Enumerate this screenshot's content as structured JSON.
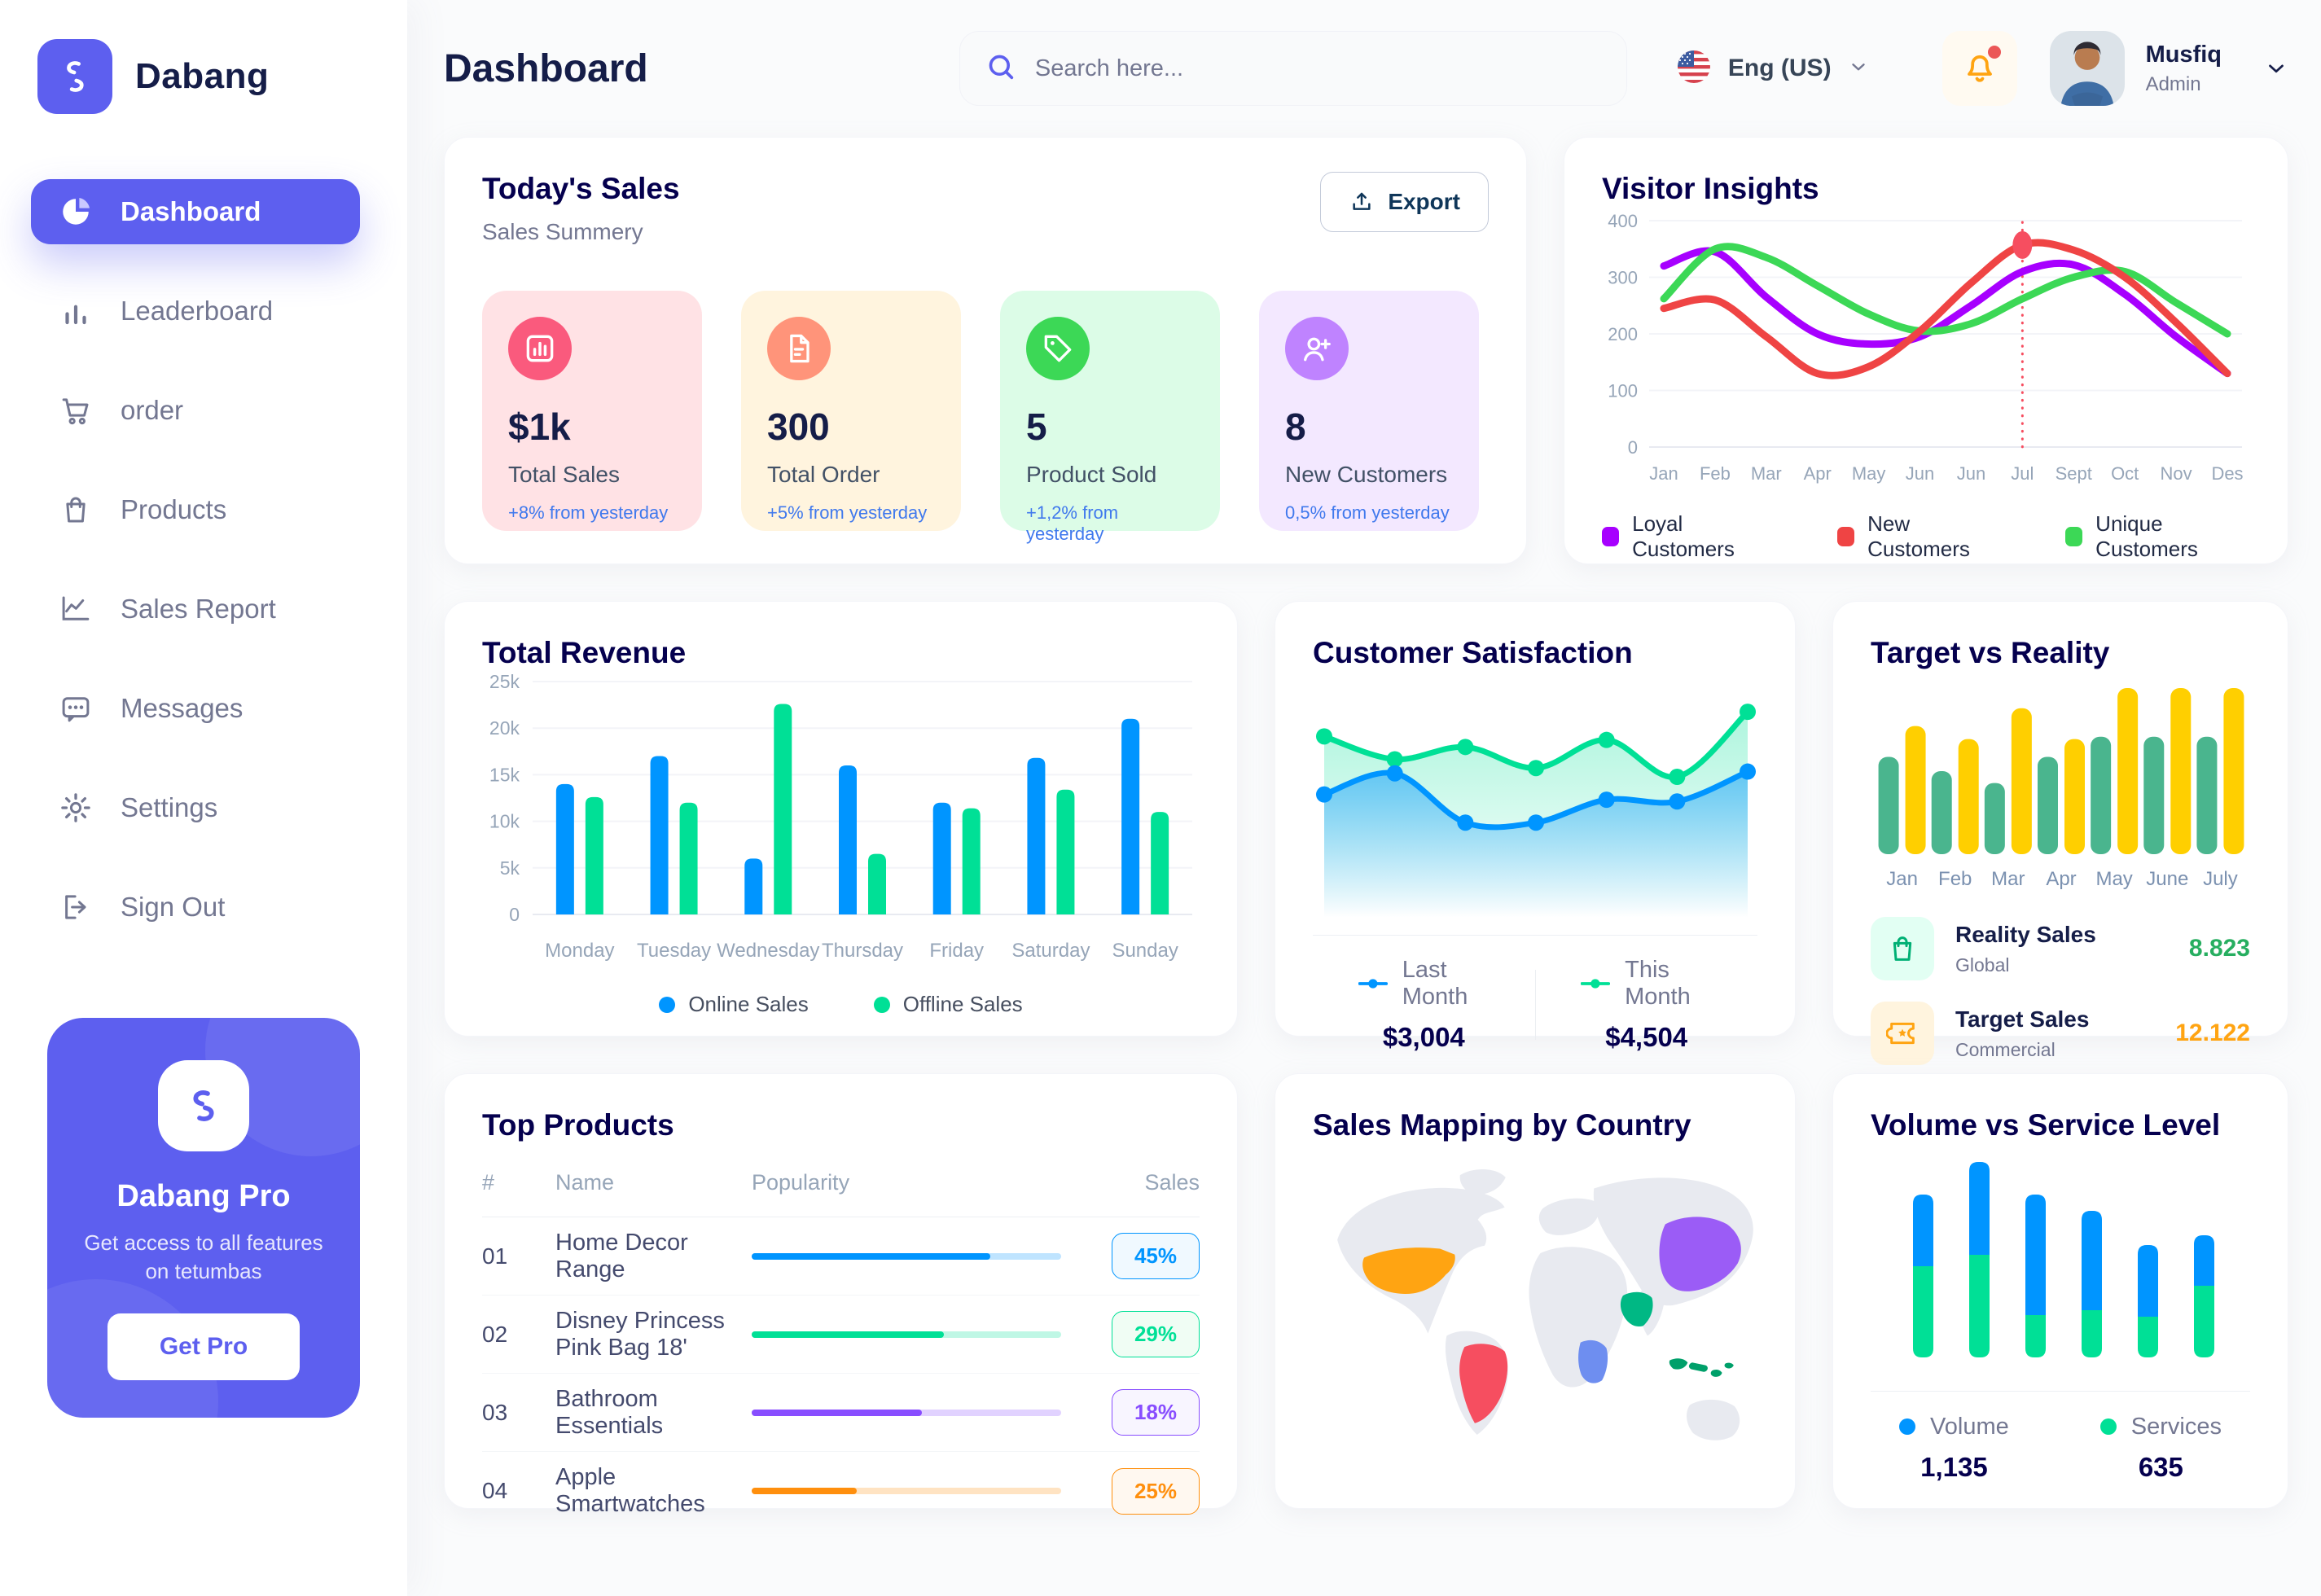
{
  "brand": {
    "name": "Dabang"
  },
  "sidebar": {
    "items": [
      {
        "label": "Dashboard",
        "icon": "dashboard-icon",
        "active": true
      },
      {
        "label": "Leaderboard",
        "icon": "leaderboard-icon",
        "active": false
      },
      {
        "label": "order",
        "icon": "cart-icon",
        "active": false
      },
      {
        "label": "Products",
        "icon": "bag-icon",
        "active": false
      },
      {
        "label": "Sales Report",
        "icon": "line-chart-icon",
        "active": false
      },
      {
        "label": "Messages",
        "icon": "messages-icon",
        "active": false
      },
      {
        "label": "Settings",
        "icon": "settings-icon",
        "active": false
      },
      {
        "label": "Sign Out",
        "icon": "sign-out-icon",
        "active": false
      }
    ],
    "pro": {
      "title": "Dabang Pro",
      "desc": "Get access to all features on tetumbas",
      "cta": "Get Pro"
    }
  },
  "header": {
    "title": "Dashboard",
    "search_placeholder": "Search here...",
    "language": "Eng (US)",
    "user": {
      "name": "Musfiq",
      "role": "Admin"
    }
  },
  "today_sales": {
    "title": "Today's Sales",
    "subtitle": "Sales Summery",
    "export_label": "Export",
    "cards": [
      {
        "value": "$1k",
        "label": "Total Sales",
        "delta": "+8% from yesterday",
        "bg": "#FFE2E5",
        "icon_bg": "#FA5A7D",
        "icon": "bar-chart-icon"
      },
      {
        "value": "300",
        "label": "Total Order",
        "delta": "+5% from yesterday",
        "bg": "#FFF4DE",
        "icon_bg": "#FF947A",
        "icon": "file-icon"
      },
      {
        "value": "5",
        "label": "Product Sold",
        "delta": "+1,2% from yesterday",
        "bg": "#DCFCE7",
        "icon_bg": "#3CD856",
        "icon": "tag-icon"
      },
      {
        "value": "8",
        "label": "New Customers",
        "delta": "0,5% from yesterday",
        "bg": "#F3E8FF",
        "icon_bg": "#BF83FF",
        "icon": "user-plus-icon"
      }
    ]
  },
  "charts": {
    "visitor_insights": {
      "type": "line",
      "title": "Visitor Insights",
      "y_ticks": [
        0,
        100,
        200,
        300,
        400
      ],
      "y_max": 400,
      "x_labels": [
        "Jan",
        "Feb",
        "Mar",
        "Apr",
        "May",
        "Jun",
        "Jun",
        "Jul",
        "Sept",
        "Oct",
        "Nov",
        "Des"
      ],
      "series": [
        {
          "name": "Loyal Customers",
          "color": "#A700FF",
          "values": [
            320,
            345,
            265,
            200,
            182,
            195,
            250,
            310,
            322,
            270,
            195,
            130
          ]
        },
        {
          "name": "New Customers",
          "color": "#EF4444",
          "values": [
            245,
            260,
            195,
            130,
            142,
            205,
            290,
            357,
            348,
            300,
            220,
            130
          ]
        },
        {
          "name": "Unique Customers",
          "color": "#3CD856",
          "values": [
            262,
            350,
            335,
            285,
            235,
            205,
            218,
            262,
            300,
            310,
            255,
            200
          ]
        }
      ],
      "marker": {
        "series": "New Customers",
        "index": 7,
        "value": 357
      }
    },
    "total_revenue": {
      "type": "bar",
      "title": "Total Revenue",
      "y_tick_labels": [
        "0",
        "5k",
        "10k",
        "15k",
        "20k",
        "25k"
      ],
      "y_max": 25,
      "categories": [
        "Monday",
        "Tuesday",
        "Wednesday",
        "Thursday",
        "Friday",
        "Saturday",
        "Sunday"
      ],
      "series": [
        {
          "name": "Online Sales",
          "color": "#0095FF",
          "values": [
            14,
            17,
            6,
            16,
            12,
            16.8,
            21
          ]
        },
        {
          "name": "Offline Sales",
          "color": "#00E096",
          "values": [
            12.6,
            12,
            22.6,
            6.5,
            11.4,
            13.4,
            11
          ]
        }
      ]
    },
    "customer_satisfaction": {
      "type": "area",
      "title": "Customer Satisfaction",
      "y_max": 100,
      "series": [
        {
          "name": "Last Month",
          "color": "#0095FF",
          "total": "$3,004",
          "values": [
            46,
            58,
            30,
            30,
            43,
            42,
            59
          ]
        },
        {
          "name": "This Month",
          "color": "#00E096",
          "total": "$4,504",
          "values": [
            79,
            66,
            73,
            61,
            77,
            56,
            93
          ]
        }
      ]
    },
    "target_vs_reality": {
      "type": "bar",
      "title": "Target vs Reality",
      "categories": [
        "Jan",
        "Feb",
        "Mar",
        "Apr",
        "May",
        "June",
        "July"
      ],
      "y_max": 14,
      "series": [
        {
          "name": "Reality Sales",
          "color": "#4AB58E",
          "values": [
            8.2,
            7,
            6,
            8.2,
            9.9,
            9.9,
            9.9
          ]
        },
        {
          "name": "Target Sales",
          "color": "#FFCF00",
          "values": [
            10.8,
            9.7,
            12.3,
            9.7,
            14,
            14,
            14
          ]
        }
      ],
      "legend": [
        {
          "label": "Reality Sales",
          "sub": "Global",
          "value": "8.823",
          "value_color": "#27AE60",
          "tile_bg": "#E2FFF3",
          "icon": "shopping-bag-icon",
          "icon_color": "#00B074"
        },
        {
          "label": "Target Sales",
          "sub": "Commercial",
          "value": "12.122",
          "value_color": "#FFA412",
          "tile_bg": "#FFF4DE",
          "icon": "ticket-icon",
          "icon_color": "#FFA412"
        }
      ]
    },
    "volume_vs_service": {
      "type": "stacked-bar",
      "title": "Volume vs Service Level",
      "y_max_total": 120,
      "series": [
        {
          "name": "Volume",
          "color": "#0095FF",
          "total": "1,135",
          "values": [
            44,
            57,
            74,
            61,
            44,
            31
          ]
        },
        {
          "name": "Services",
          "color": "#00E096",
          "total": "635",
          "values": [
            56,
            63,
            26,
            29,
            25,
            44
          ]
        }
      ]
    }
  },
  "top_products": {
    "title": "Top Products",
    "headers": [
      "#",
      "Name",
      "Popularity",
      "Sales"
    ],
    "rows": [
      {
        "id": "01",
        "name": "Home Decor Range",
        "popularity": 77,
        "sales": "45%",
        "color": "#0095FF",
        "badge_bg": "#F0F9FF"
      },
      {
        "id": "02",
        "name": "Disney Princess Pink Bag 18'",
        "popularity": 62,
        "sales": "29%",
        "color": "#00E096",
        "badge_bg": "#F0FDF4"
      },
      {
        "id": "03",
        "name": "Bathroom Essentials",
        "popularity": 55,
        "sales": "18%",
        "color": "#884DFF",
        "badge_bg": "#F8F5FF"
      },
      {
        "id": "04",
        "name": "Apple Smartwatches",
        "popularity": 34,
        "sales": "25%",
        "color": "#FF8F0D",
        "badge_bg": "#FFF8F0"
      }
    ]
  },
  "sales_map": {
    "title": "Sales Mapping by Country",
    "base_color": "#E8EAF0",
    "countries": [
      {
        "id": "usa",
        "name": "United States",
        "color": "#FFA412"
      },
      {
        "id": "brazil",
        "name": "Brazil",
        "color": "#F64E60"
      },
      {
        "id": "saudi",
        "name": "Saudi Arabia",
        "color": "#00B884"
      },
      {
        "id": "congo",
        "name": "DR Congo",
        "color": "#6E8EF0"
      },
      {
        "id": "china",
        "name": "China",
        "color": "#9B5CF6"
      },
      {
        "id": "indonesia",
        "name": "Indonesia",
        "color": "#00A06A"
      }
    ]
  },
  "colors": {
    "primary": "#5D5FEF",
    "heading": "#05004E",
    "text_gray": "#737791",
    "delta_blue": "#4079ED"
  }
}
